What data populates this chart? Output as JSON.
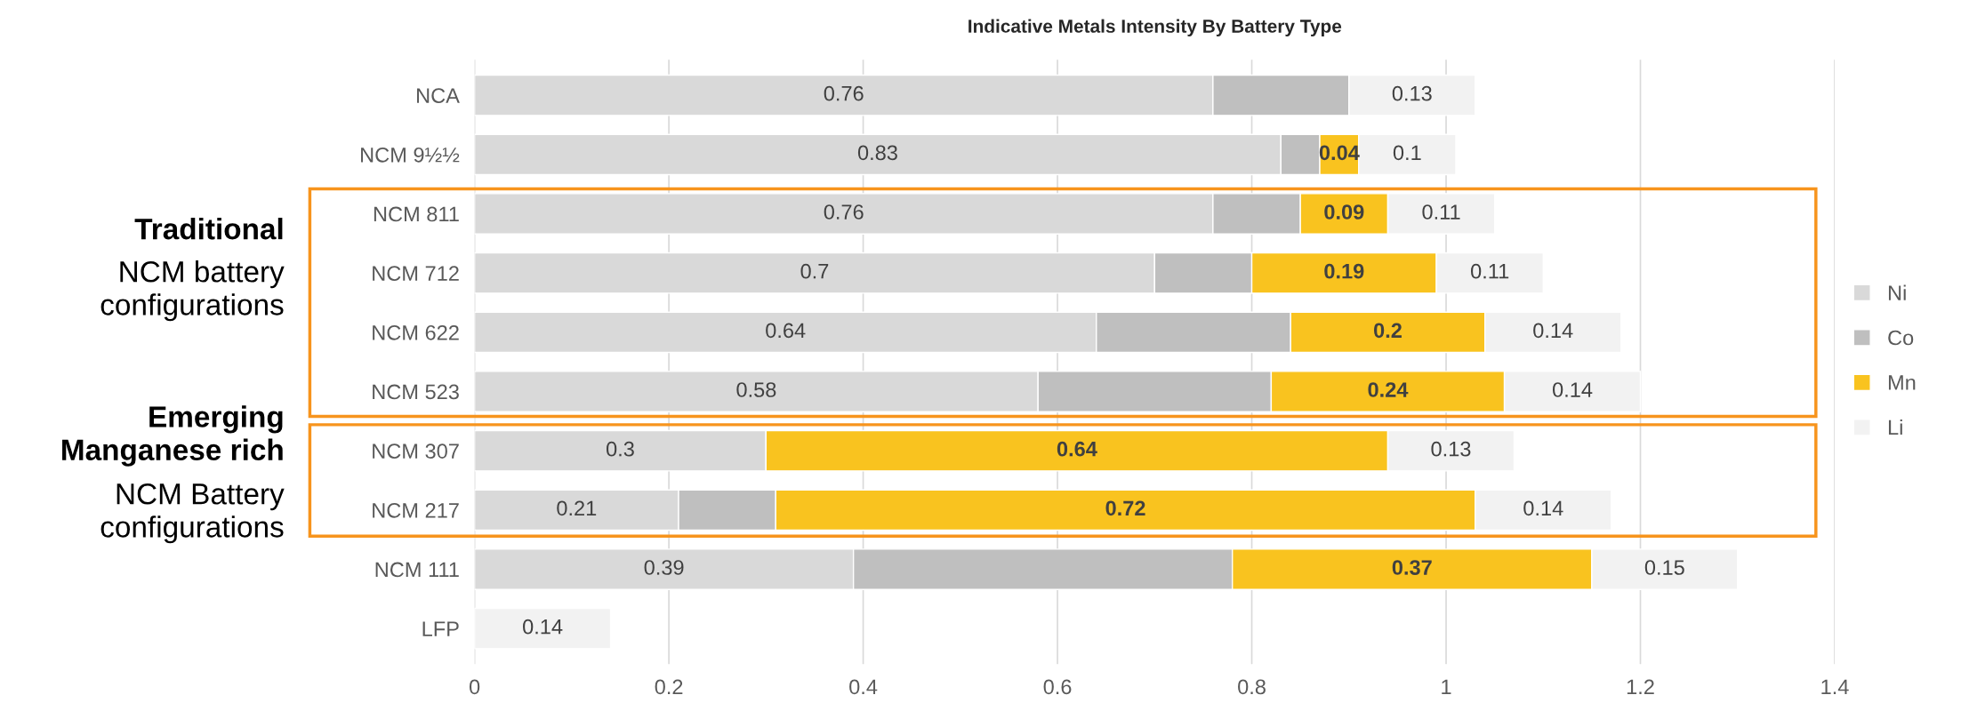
{
  "chart_data": {
    "type": "bar",
    "orientation": "horizontal",
    "stacked": true,
    "title": "Indicative Metals Intensity By Battery Type",
    "categories": [
      "NCA",
      "NCM 9½½",
      "NCM 811",
      "NCM 712",
      "NCM 622",
      "NCM 523",
      "NCM 307",
      "NCM 217",
      "NCM 111",
      "LFP"
    ],
    "series": [
      {
        "name": "Ni",
        "color": "#d9d9d9",
        "values": [
          0.76,
          0.83,
          0.76,
          0.7,
          0.64,
          0.58,
          0.3,
          0.21,
          0.39,
          0
        ],
        "value_labels": [
          "0.76",
          "0.83",
          "0.76",
          "0.7",
          "0.64",
          "0.58",
          "0.3",
          "0.21",
          "0.39",
          null
        ]
      },
      {
        "name": "Co",
        "color": "#bfbfbf",
        "values": [
          0.14,
          0.04,
          0.09,
          0.1,
          0.2,
          0.24,
          0,
          0.1,
          0.39,
          0
        ]
      },
      {
        "name": "Mn",
        "color": "#f9c31f",
        "values": [
          0,
          0.04,
          0.09,
          0.19,
          0.2,
          0.24,
          0.64,
          0.72,
          0.37,
          0
        ],
        "value_labels": [
          null,
          "0.04",
          "0.09",
          "0.19",
          "0.2",
          "0.24",
          "0.64",
          "0.72",
          "0.37",
          null
        ]
      },
      {
        "name": "Li",
        "color": "#f2f2f2",
        "values": [
          0.13,
          0.1,
          0.11,
          0.11,
          0.14,
          0.14,
          0.13,
          0.14,
          0.15,
          0.14
        ],
        "value_labels": [
          "0.13",
          "0.1",
          "0.11",
          "0.11",
          "0.14",
          "0.14",
          "0.13",
          "0.14",
          "0.15",
          "0.14"
        ]
      }
    ],
    "xlim": [
      0,
      1.4
    ],
    "xticks": [
      0,
      0.2,
      0.4,
      0.6,
      0.8,
      1,
      1.2,
      1.4
    ],
    "grid": "x",
    "legend": "right",
    "annotations": [
      "Traditional",
      "NCM battery\nconfigurations",
      "Emerging\nManganese rich",
      "NCM Battery\nconfigurations"
    ]
  }
}
